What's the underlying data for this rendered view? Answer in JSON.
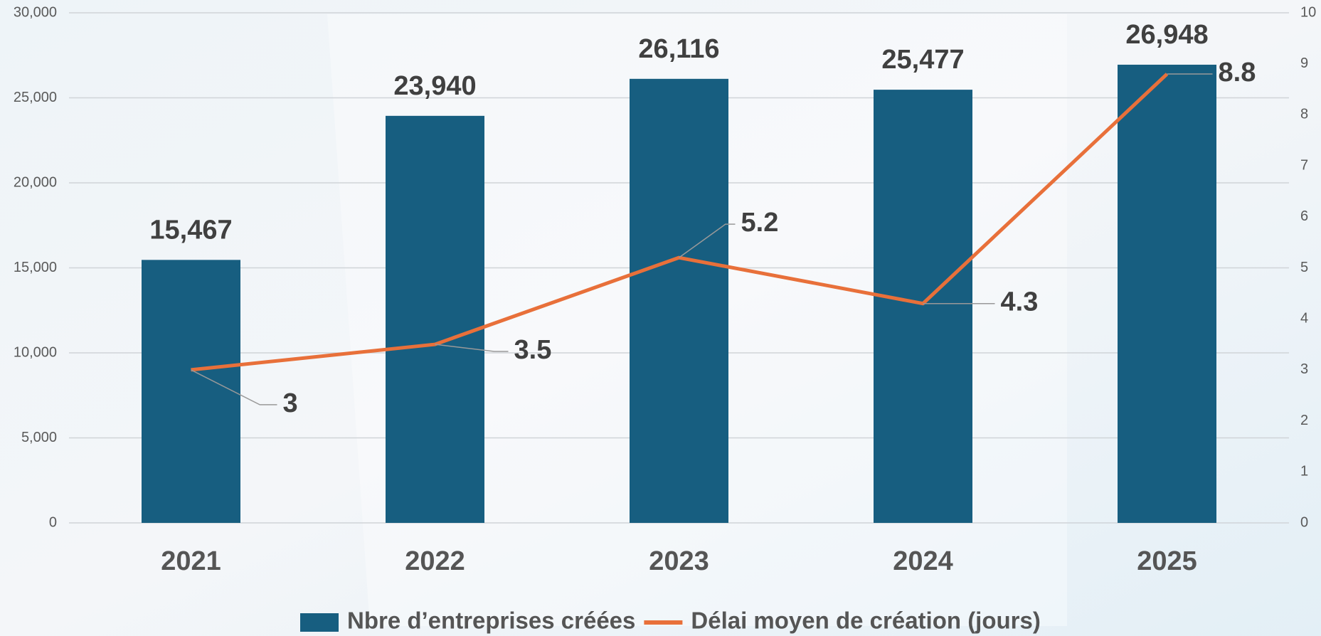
{
  "chart_data": {
    "type": "bar-line",
    "categories": [
      "2021",
      "2022",
      "2023",
      "2024",
      "2025"
    ],
    "series": [
      {
        "name": "Nbre d’entreprises créées",
        "type": "bar",
        "color": "#175e80",
        "values": [
          15467,
          23940,
          26116,
          25477,
          26948
        ],
        "value_labels": [
          "15,467",
          "23,940",
          "26,116",
          "25,477",
          "26,948"
        ]
      },
      {
        "name": "Délai moyen de création (jours)",
        "type": "line",
        "axis": "y2",
        "color": "#e8703a",
        "values": [
          3,
          3.5,
          5.2,
          4.3,
          8.8
        ]
      }
    ],
    "ylim": [
      0,
      30000
    ],
    "yticks": [
      0,
      {
        "value": 5000,
        "label": "5,000"
      },
      {
        "value": 10000,
        "label": "10,000"
      },
      {
        "value": 15000,
        "label": "15,000"
      },
      {
        "value": 20000,
        "label": "20,000"
      },
      {
        "value": 25000,
        "label": "25,000"
      },
      {
        "value": 30000,
        "label": "30,000"
      }
    ],
    "y2lim": [
      0,
      10
    ],
    "y2ticks": [
      0,
      1,
      2,
      3,
      4,
      5,
      6,
      7,
      8,
      9,
      10
    ],
    "grid": true,
    "legend": "bottom"
  }
}
